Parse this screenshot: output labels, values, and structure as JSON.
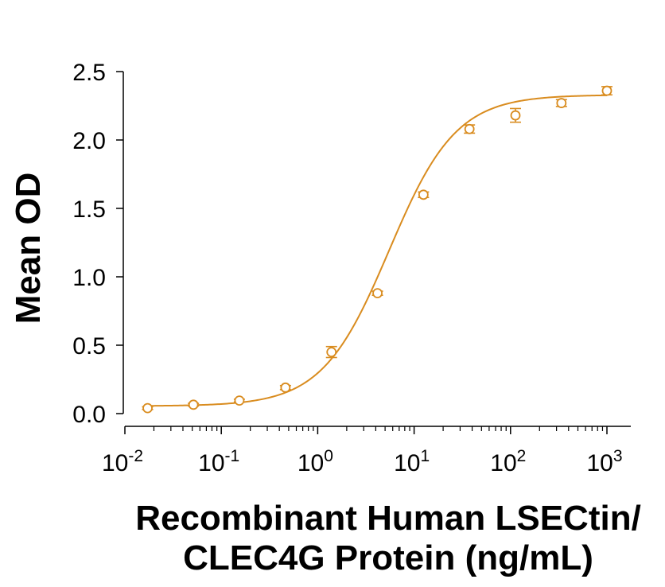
{
  "chart_data": {
    "type": "scatter",
    "title": "",
    "xlabel_lines": [
      "Recombinant Human LSECtin/",
      "CLEC4G Protein (ng/mL)"
    ],
    "ylabel": "Mean OD",
    "x_scale": "log",
    "xlim": [
      0.01,
      1000
    ],
    "ylim": [
      0,
      2.5
    ],
    "y_ticks": [
      "0.0",
      "0.5",
      "1.0",
      "1.5",
      "2.0",
      "2.5"
    ],
    "x_ticks": [
      {
        "base": "10",
        "exp": "-2"
      },
      {
        "base": "10",
        "exp": "-1"
      },
      {
        "base": "10",
        "exp": "0"
      },
      {
        "base": "10",
        "exp": "1"
      },
      {
        "base": "10",
        "exp": "2"
      },
      {
        "base": "10",
        "exp": "3"
      }
    ],
    "series": [
      {
        "color": "#D98C1F",
        "marker": "open-circle",
        "points": [
          {
            "x": 0.0172,
            "y": 0.04,
            "err": 0.01
          },
          {
            "x": 0.0514,
            "y": 0.065,
            "err": 0.01
          },
          {
            "x": 0.154,
            "y": 0.095,
            "err": 0.01
          },
          {
            "x": 0.463,
            "y": 0.19,
            "err": 0.015
          },
          {
            "x": 1.39,
            "y": 0.45,
            "err": 0.04
          },
          {
            "x": 4.17,
            "y": 0.88,
            "err": 0.015
          },
          {
            "x": 12.5,
            "y": 1.6,
            "err": 0.02
          },
          {
            "x": 37.5,
            "y": 2.08,
            "err": 0.03
          },
          {
            "x": 112.5,
            "y": 2.18,
            "err": 0.05
          },
          {
            "x": 337.5,
            "y": 2.27,
            "err": 0.025
          },
          {
            "x": 1000,
            "y": 2.36,
            "err": 0.03
          }
        ]
      }
    ],
    "fit_curve": {
      "model": "4PL",
      "bottom": 0.055,
      "top": 2.33,
      "ec50": 5.5,
      "hill": 1.25
    }
  }
}
